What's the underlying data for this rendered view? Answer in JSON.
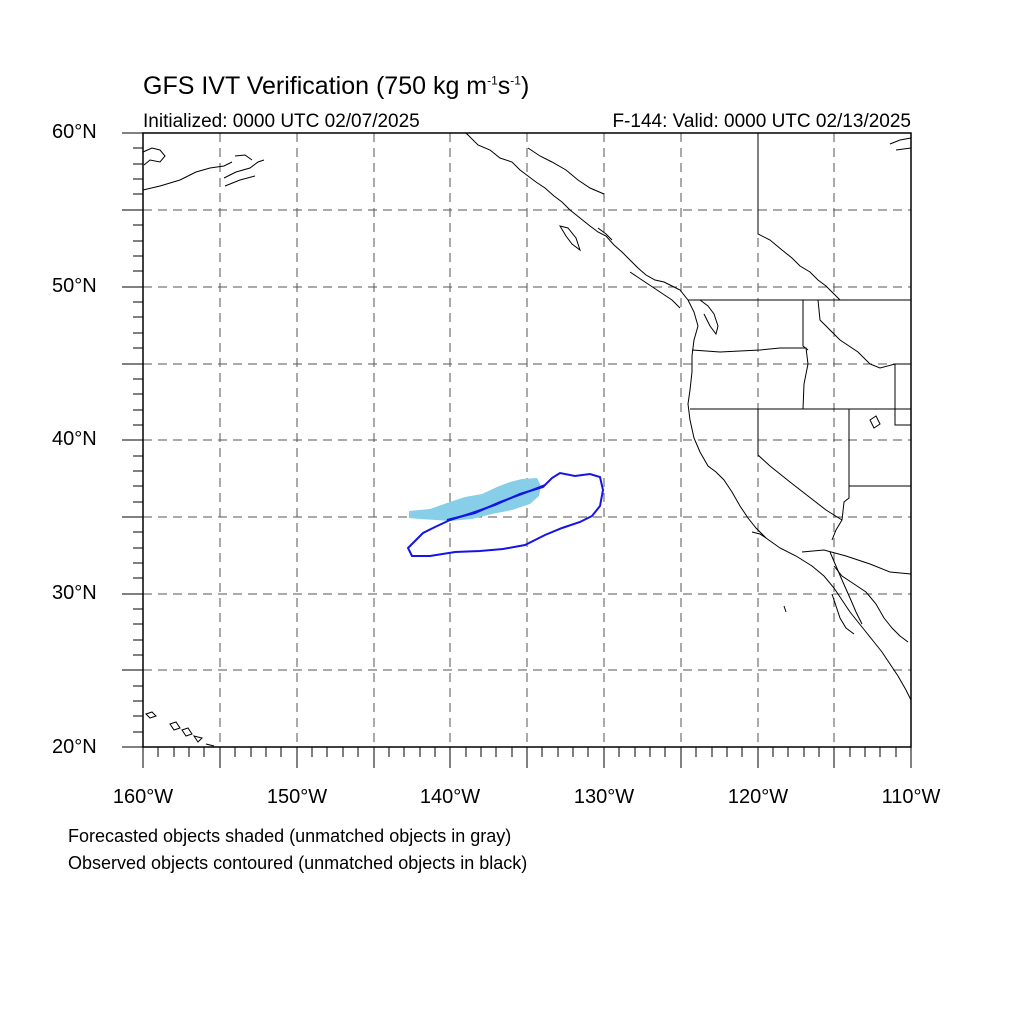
{
  "header": {
    "title_main": "GFS IVT Verification (750 kg m",
    "title_exp1": "-1",
    "title_mid": "s",
    "title_exp2": "-1",
    "title_end": ")",
    "initialized": "Initialized: 0000 UTC 02/07/2025",
    "valid": "F-144: Valid: 0000 UTC 02/13/2025"
  },
  "axes": {
    "lat_labels": [
      "60°N",
      "50°N",
      "40°N",
      "30°N",
      "20°N"
    ],
    "lon_labels": [
      "160°W",
      "150°W",
      "140°W",
      "130°W",
      "120°W",
      "110°W"
    ],
    "lon_range": [
      -160,
      -110
    ],
    "lat_range": [
      20,
      60
    ],
    "grid": "dashed, every 5 degrees"
  },
  "legend": {
    "line1": "Forecasted objects shaded (unmatched objects in gray)",
    "line2": "Observed objects contoured (unmatched objects in black)"
  },
  "colors": {
    "forecast_fill": "#87CEE8",
    "observed_contour": "#1414E6",
    "coastline": "#000000",
    "grid": "#555555"
  }
}
